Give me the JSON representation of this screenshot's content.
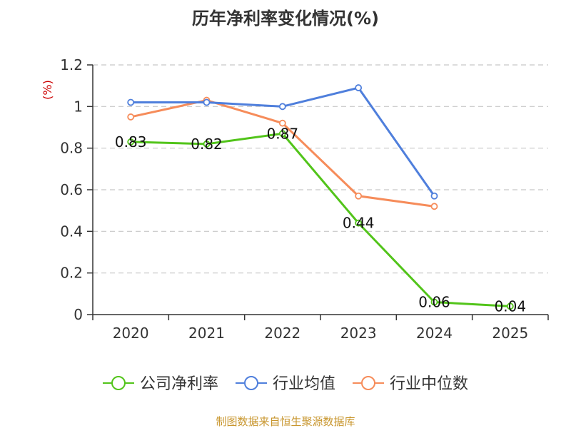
{
  "chart_data": {
    "type": "line",
    "title": "历年净利率变化情况(%)",
    "ylabel": "(%)",
    "xlabel": "",
    "categories": [
      "2020",
      "2021",
      "2022",
      "2023",
      "2024",
      "2025"
    ],
    "ylim": [
      0,
      1.2
    ],
    "yticks": [
      0,
      0.2,
      0.4,
      0.6,
      0.8,
      1,
      1.2
    ],
    "ytick_labels": [
      "0",
      "0.2",
      "0.4",
      "0.6",
      "0.8",
      "1",
      "1.2"
    ],
    "grid": true,
    "legend_position": "bottom",
    "series": [
      {
        "name": "公司净利率",
        "values": [
          0.83,
          0.82,
          0.87,
          0.44,
          0.06,
          0.04
        ],
        "labels": [
          "0.83",
          "0.82",
          "0.87",
          "0.44",
          "0.06",
          "0.04"
        ],
        "show_labels": true
      },
      {
        "name": "行业均值",
        "values": [
          1.02,
          1.02,
          1.0,
          1.09,
          0.57,
          null
        ],
        "show_labels": false
      },
      {
        "name": "行业中位数",
        "values": [
          0.95,
          1.03,
          0.92,
          0.57,
          0.52,
          null
        ],
        "show_labels": false
      }
    ],
    "source": "制图数据来自恒生聚源数据库"
  },
  "colors": {
    "series": [
      "#52c41a",
      "#4f7fdc",
      "#f68c5a"
    ],
    "axis": "#333333",
    "grid": "#c8c8c8",
    "unit": "#cc0000",
    "source": "#c8962e"
  }
}
